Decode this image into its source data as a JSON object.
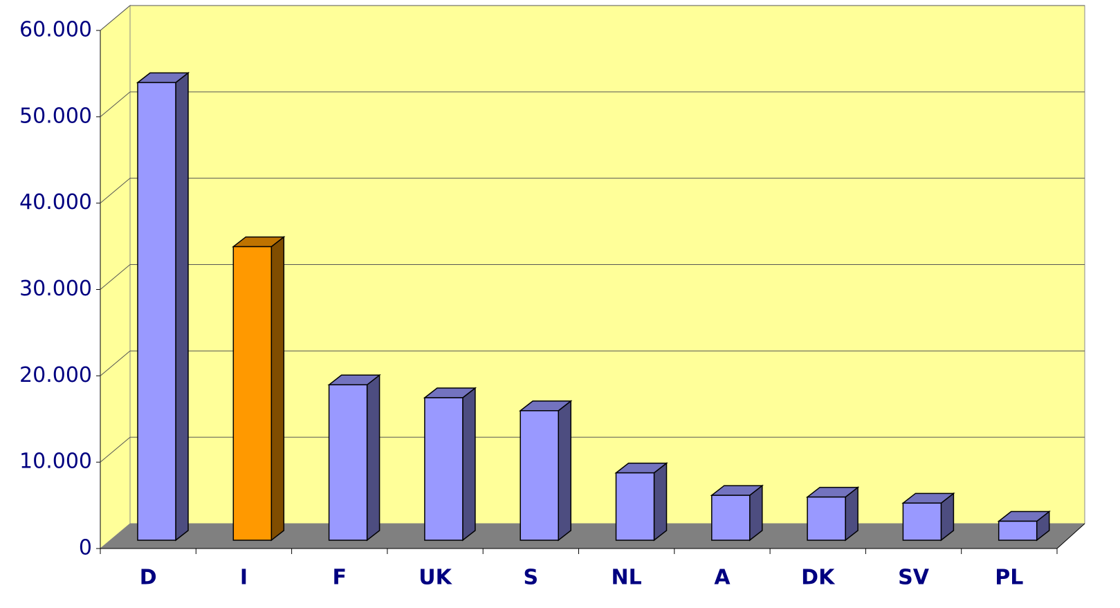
{
  "chart_data": {
    "type": "bar3d",
    "categories": [
      "D",
      "I",
      "F",
      "UK",
      "S",
      "NL",
      "A",
      "DK",
      "SV",
      "PL"
    ],
    "values": [
      53000,
      34000,
      18000,
      16500,
      15000,
      7800,
      5200,
      5000,
      4300,
      2200
    ],
    "colors": [
      "#9999ff",
      "#ff9900",
      "#9999ff",
      "#9999ff",
      "#9999ff",
      "#9999ff",
      "#9999ff",
      "#9999ff",
      "#9999ff",
      "#9999ff"
    ],
    "ylim": [
      0,
      60000
    ],
    "yticks": [
      0,
      {
        "value": 10000,
        "label": "10.000"
      },
      {
        "value": 20000,
        "label": "20.000"
      },
      {
        "value": 30000,
        "label": "30.000"
      },
      {
        "value": 40000,
        "label": "40.000"
      },
      {
        "value": 50000,
        "label": "50.000"
      },
      {
        "value": 60000,
        "label": "60.000"
      }
    ],
    "grid": true
  }
}
